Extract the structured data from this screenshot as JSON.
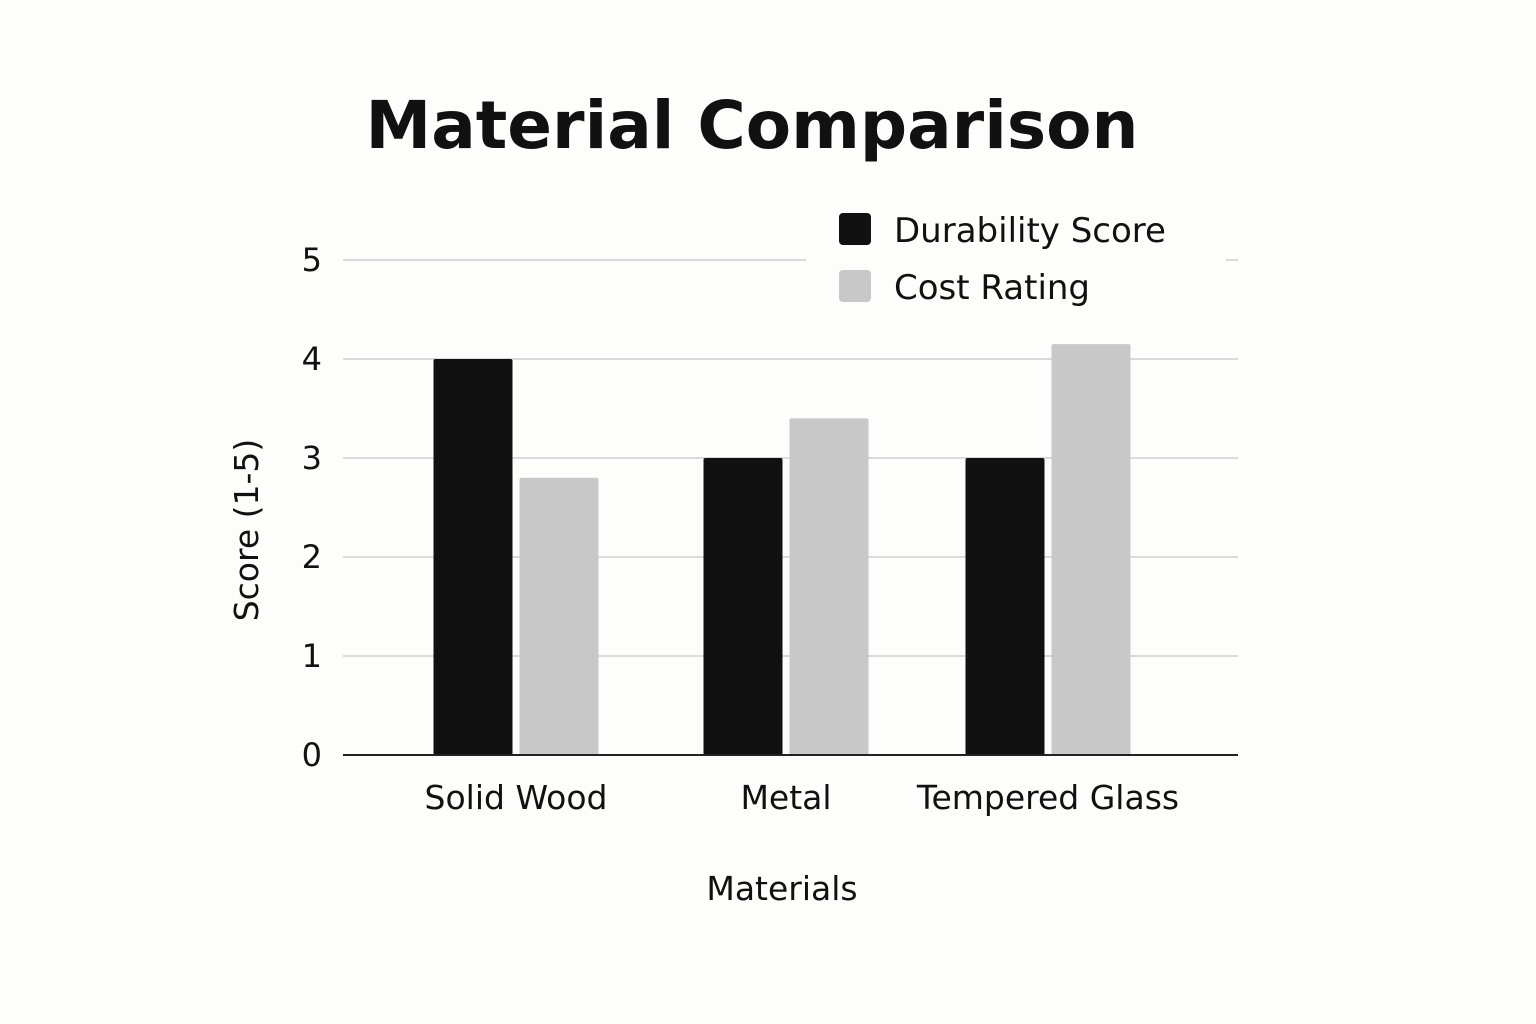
{
  "chart_data": {
    "type": "bar",
    "title": "Material Comparison",
    "xlabel": "Materials",
    "ylabel": "Score (1-5)",
    "categories": [
      "Solid Wood",
      "Metal",
      "Tempered Glass"
    ],
    "series": [
      {
        "name": "Durability Score",
        "values": [
          4.0,
          3.0,
          3.0
        ],
        "color": "#111111"
      },
      {
        "name": "Cost Rating",
        "values": [
          2.8,
          3.4,
          4.15
        ],
        "color": "#c8c8c8"
      }
    ],
    "ylim": [
      0,
      5
    ],
    "yticks": [
      "0",
      "1",
      "2",
      "3",
      "4",
      "5"
    ],
    "grid": true,
    "legend_position": "top-right"
  }
}
